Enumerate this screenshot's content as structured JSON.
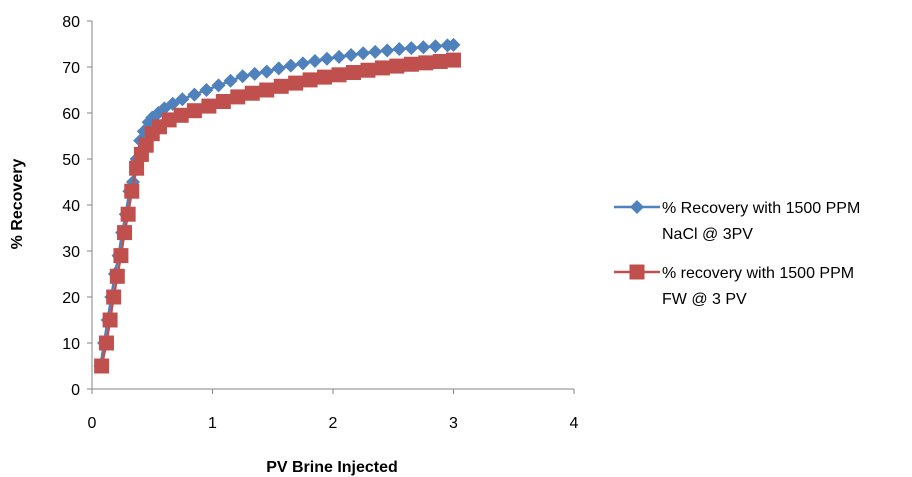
{
  "chart_data": {
    "type": "scatter",
    "title": "",
    "xlabel": "PV Brine Injected",
    "ylabel": "% Recovery",
    "xlim": [
      0,
      4
    ],
    "ylim": [
      0,
      80
    ],
    "x_ticks": [
      "0",
      "1",
      "2",
      "3",
      "4"
    ],
    "y_ticks": [
      "0",
      "10",
      "20",
      "30",
      "40",
      "50",
      "60",
      "70",
      "80"
    ],
    "grid": false,
    "legend_position": "right",
    "series": [
      {
        "legend_lines": [
          "% Recovery with 1500 PPM",
          "NaCl @ 3PV"
        ],
        "color": "#4F81BD",
        "marker": "diamond",
        "x": [
          0.07,
          0.1,
          0.13,
          0.16,
          0.19,
          0.22,
          0.25,
          0.28,
          0.31,
          0.34,
          0.37,
          0.4,
          0.43,
          0.47,
          0.5,
          0.55,
          0.6,
          0.67,
          0.75,
          0.85,
          0.95,
          1.05,
          1.15,
          1.25,
          1.35,
          1.45,
          1.55,
          1.65,
          1.75,
          1.85,
          1.95,
          2.05,
          2.15,
          2.25,
          2.35,
          2.45,
          2.55,
          2.65,
          2.75,
          2.85,
          2.95,
          3.0
        ],
        "y": [
          5,
          10,
          15,
          20,
          25,
          29,
          34,
          38,
          43,
          45,
          50,
          54,
          56,
          58,
          59,
          60,
          61,
          62,
          63,
          64,
          65,
          66,
          67,
          68,
          68.5,
          69,
          69.7,
          70.3,
          70.8,
          71.3,
          71.8,
          72.2,
          72.6,
          73,
          73.3,
          73.6,
          73.9,
          74.1,
          74.3,
          74.5,
          74.7,
          74.8
        ]
      },
      {
        "legend_lines": [
          "% recovery with 1500 PPM",
          "FW @ 3 PV"
        ],
        "color": "#C0504D",
        "marker": "square",
        "x": [
          0.08,
          0.12,
          0.15,
          0.18,
          0.21,
          0.24,
          0.27,
          0.3,
          0.33,
          0.37,
          0.41,
          0.45,
          0.5,
          0.56,
          0.64,
          0.74,
          0.85,
          0.97,
          1.09,
          1.21,
          1.33,
          1.45,
          1.57,
          1.69,
          1.81,
          1.93,
          2.05,
          2.17,
          2.29,
          2.41,
          2.53,
          2.65,
          2.77,
          2.89,
          3.0
        ],
        "y": [
          5,
          10,
          15,
          20,
          24.5,
          29,
          34,
          38,
          43,
          48,
          51,
          53,
          55.5,
          57,
          58.5,
          59.5,
          60.5,
          61.5,
          62.5,
          63.5,
          64.3,
          65,
          65.8,
          66.5,
          67.2,
          67.8,
          68.3,
          68.8,
          69.3,
          69.8,
          70.2,
          70.6,
          70.9,
          71.2,
          71.5
        ]
      }
    ]
  }
}
